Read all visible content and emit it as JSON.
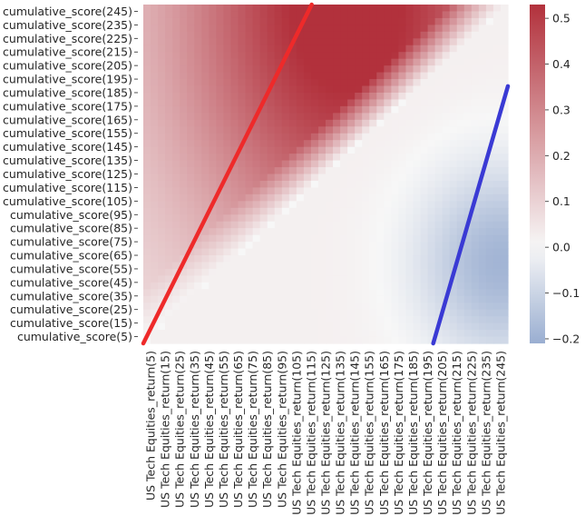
{
  "chart_data": {
    "type": "heatmap",
    "title": "",
    "xlabel": "",
    "ylabel": "",
    "x_categories": [
      "US Tech Equities_return(5)",
      "US Tech Equities_return(15)",
      "US Tech Equities_return(25)",
      "US Tech Equities_return(35)",
      "US Tech Equities_return(45)",
      "US Tech Equities_return(55)",
      "US Tech Equities_return(65)",
      "US Tech Equities_return(75)",
      "US Tech Equities_return(85)",
      "US Tech Equities_return(95)",
      "US Tech Equities_return(105)",
      "US Tech Equities_return(115)",
      "US Tech Equities_return(125)",
      "US Tech Equities_return(135)",
      "US Tech Equities_return(145)",
      "US Tech Equities_return(155)",
      "US Tech Equities_return(165)",
      "US Tech Equities_return(175)",
      "US Tech Equities_return(185)",
      "US Tech Equities_return(195)",
      "US Tech Equities_return(205)",
      "US Tech Equities_return(215)",
      "US Tech Equities_return(225)",
      "US Tech Equities_return(235)",
      "US Tech Equities_return(245)"
    ],
    "y_categories": [
      "cumulative_score(245)",
      "cumulative_score(235)",
      "cumulative_score(225)",
      "cumulative_score(215)",
      "cumulative_score(205)",
      "cumulative_score(195)",
      "cumulative_score(185)",
      "cumulative_score(175)",
      "cumulative_score(165)",
      "cumulative_score(155)",
      "cumulative_score(145)",
      "cumulative_score(135)",
      "cumulative_score(125)",
      "cumulative_score(115)",
      "cumulative_score(105)",
      "cumulative_score(95)",
      "cumulative_score(85)",
      "cumulative_score(75)",
      "cumulative_score(65)",
      "cumulative_score(55)",
      "cumulative_score(45)",
      "cumulative_score(35)",
      "cumulative_score(25)",
      "cumulative_score(15)",
      "cumulative_score(5)"
    ],
    "x_range": [
      1,
      250
    ],
    "y_range": [
      1,
      250
    ],
    "value_range": [
      -0.21,
      0.53
    ],
    "colorbar": {
      "ticks": [
        -0.2,
        -0.1,
        0.0,
        0.1,
        0.2,
        0.3,
        0.4,
        0.5
      ],
      "tick_labels": [
        "−0.2",
        "−0.1",
        "0.0",
        "0.1",
        "0.2",
        "0.3",
        "0.4",
        "0.5"
      ],
      "colormap": "diverging blue-white-red",
      "low_color": "#9aaed1",
      "mid_color": "#f7f7f7",
      "high_color": "#b2313c"
    },
    "surface_model": {
      "peak_value": 0.53,
      "peak_x": 140,
      "peak_y": 250,
      "lower_diagonal_value": 0.0,
      "trough_value": -0.21,
      "trough_x": 245,
      "trough_y": 60
    },
    "overlay_lines": [
      {
        "color": "#ee2a2a",
        "x": [
          1,
          116
        ],
        "y": [
          1,
          250
        ]
      },
      {
        "color": "#3a3ad4",
        "x": [
          199,
          250
        ],
        "y": [
          1,
          190
        ]
      }
    ]
  }
}
